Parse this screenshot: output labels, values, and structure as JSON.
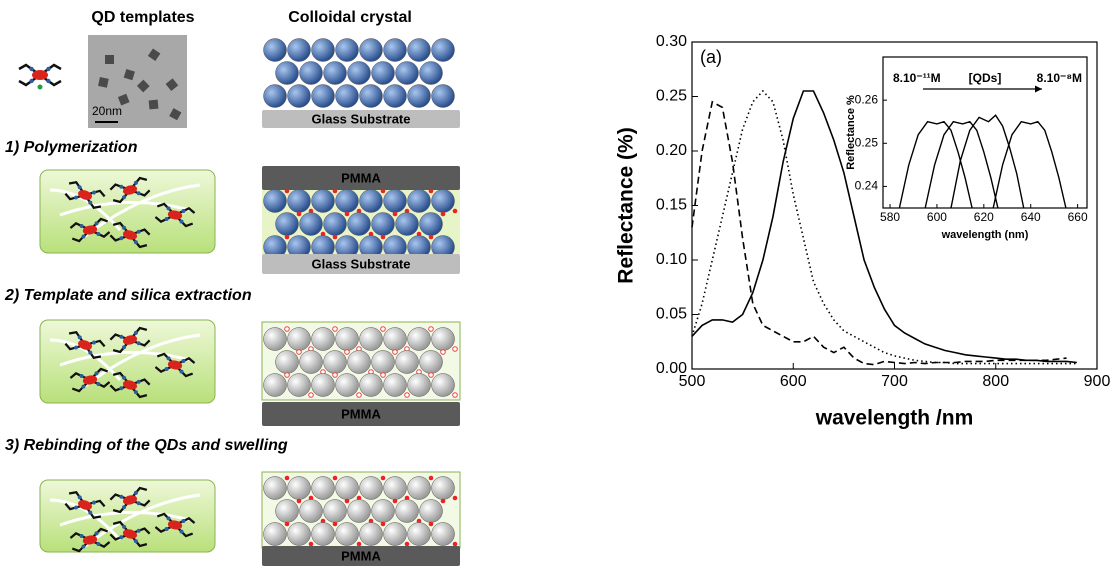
{
  "schematic": {
    "headers": [
      "QD templates",
      "Colloidal crystal"
    ],
    "scale_bar": "20nm",
    "substrate_labels": [
      "Glass Substrate",
      "Glass Substrate"
    ],
    "pmma_labels": [
      "PMMA",
      "PMMA",
      "PMMA"
    ],
    "steps": [
      "1) Polymerization",
      "2) Template and silica extraction",
      "3) Rebinding of the QDs and swelling"
    ]
  },
  "chart_data": [
    {
      "type": "line",
      "panel_label": "(a)",
      "x_label": "wavelength /nm",
      "y_label": "Reflectance (%)",
      "x": [
        500,
        510,
        520,
        530,
        540,
        550,
        560,
        570,
        580,
        590,
        600,
        610,
        620,
        630,
        640,
        650,
        660,
        670,
        680,
        690,
        700,
        710,
        720,
        730,
        740,
        750,
        760,
        770,
        780,
        790,
        800,
        810,
        820,
        830,
        840,
        850,
        860,
        870,
        880
      ],
      "series": [
        {
          "color": "#000000",
          "dash": "solid",
          "values": [
            0.03,
            0.04,
            0.045,
            0.045,
            0.043,
            0.05,
            0.07,
            0.1,
            0.14,
            0.19,
            0.23,
            0.255,
            0.255,
            0.235,
            0.21,
            0.18,
            0.14,
            0.1,
            0.075,
            0.055,
            0.04,
            0.033,
            0.028,
            0.023,
            0.02,
            0.017,
            0.015,
            0.013,
            0.012,
            0.011,
            0.01,
            0.009,
            0.009,
            0.008,
            0.008,
            0.007,
            0.007,
            0.007,
            0.006
          ]
        },
        {
          "color": "#000000",
          "dash": "dashed",
          "values": [
            0.13,
            0.2,
            0.245,
            0.24,
            0.19,
            0.12,
            0.06,
            0.04,
            0.035,
            0.03,
            0.025,
            0.025,
            0.03,
            0.02,
            0.015,
            0.02,
            0.01,
            0.005,
            0.004,
            0.007,
            0.006,
            0.005,
            0.006,
            0.005,
            0.006,
            0.006,
            0.006,
            0.007,
            0.007,
            0.007,
            0.008,
            0.008,
            0.008,
            0.008,
            0.008,
            0.008,
            0.009,
            0.01,
            null
          ]
        },
        {
          "color": "#000000",
          "dash": "dotted",
          "values": [
            0.03,
            0.06,
            0.1,
            0.14,
            0.18,
            0.22,
            0.245,
            0.255,
            0.245,
            0.21,
            0.16,
            0.12,
            0.08,
            0.06,
            0.045,
            0.035,
            0.03,
            0.025,
            0.02,
            0.015,
            0.012,
            0.01,
            0.008,
            0.007,
            0.006,
            0.006,
            0.005,
            0.005,
            0.005,
            0.005,
            0.005,
            0.005,
            0.005,
            0.005,
            0.005,
            0.005,
            0.005,
            0.005,
            0.005
          ]
        }
      ],
      "xlim": [
        500,
        900
      ],
      "ylim": [
        0,
        0.3
      ],
      "xticks": [
        500,
        600,
        700,
        800,
        900
      ],
      "yticks": [
        {
          "value": 0,
          "label": "0.00"
        },
        0.05,
        {
          "value": 0.1,
          "label": "0.10"
        },
        0.15,
        {
          "value": 0.2,
          "label": "0.20"
        },
        0.25,
        {
          "value": 0.3,
          "label": "0.30"
        }
      ]
    },
    {
      "type": "line",
      "x_label": "wavelength (nm)",
      "y_label": "Reflectance %",
      "annotations": [
        "8.10⁻¹¹M",
        "[QDs]",
        "8.10⁻⁸M"
      ],
      "series": [
        {
          "color": "#000000",
          "x": [
            584,
            588,
            592,
            596,
            600,
            603,
            606,
            609,
            612,
            615
          ],
          "values": [
            0.235,
            0.245,
            0.252,
            0.255,
            0.2545,
            0.255,
            0.253,
            0.248,
            0.242,
            0.235
          ]
        },
        {
          "color": "#000000",
          "x": [
            595,
            599,
            603,
            607,
            611,
            614,
            617,
            620,
            623,
            626
          ],
          "values": [
            0.235,
            0.245,
            0.252,
            0.255,
            0.2545,
            0.255,
            0.253,
            0.248,
            0.242,
            0.235
          ]
        },
        {
          "color": "#000000",
          "x": [
            606,
            610,
            614,
            618,
            622,
            625,
            628,
            631,
            634,
            637
          ],
          "values": [
            0.235,
            0.246,
            0.253,
            0.256,
            0.255,
            0.2565,
            0.254,
            0.249,
            0.243,
            0.235
          ]
        },
        {
          "color": "#000000",
          "x": [
            624,
            628,
            632,
            636,
            640,
            643,
            646,
            649,
            652,
            655
          ],
          "values": [
            0.235,
            0.245,
            0.252,
            0.255,
            0.2545,
            0.255,
            0.253,
            0.248,
            0.242,
            0.235
          ]
        }
      ],
      "xlim": [
        577,
        664
      ],
      "ylim": [
        0.235,
        0.27
      ],
      "xticks": [
        580,
        600,
        620,
        640,
        660
      ],
      "yticks": [
        0.24,
        0.25,
        0.26
      ]
    }
  ]
}
